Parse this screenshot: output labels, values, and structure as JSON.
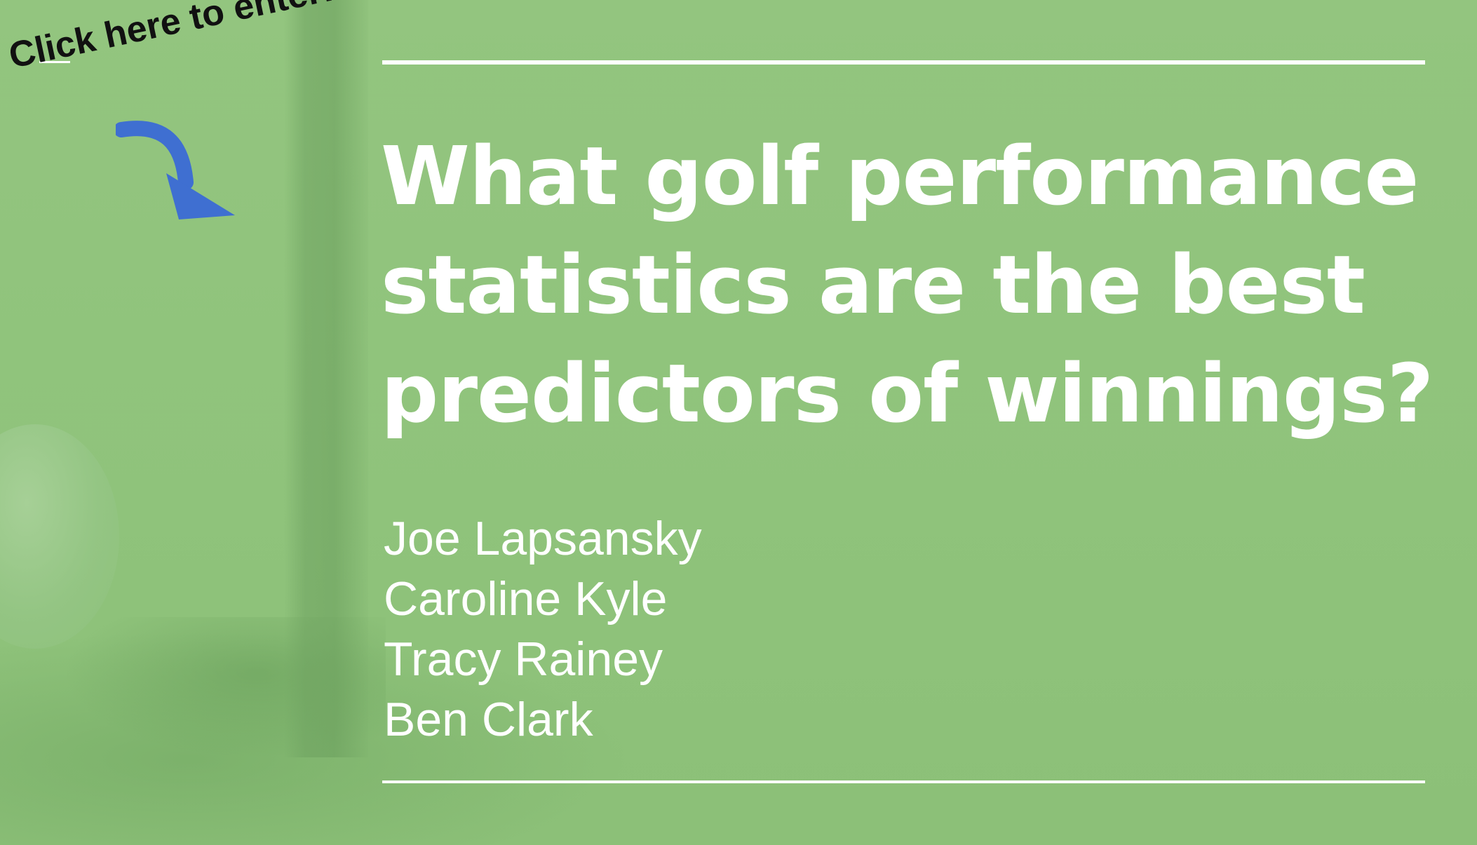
{
  "slide": {
    "background_color": "#90c37d",
    "accent_arrow_color": "#3f6fd1"
  },
  "callout": {
    "text": "Click here to enter!",
    "arrow_icon": "curved-arrow-down-right-icon"
  },
  "title": {
    "lines": [
      "What golf performance",
      "statistics are the best",
      "predictors of winnings?"
    ]
  },
  "authors": [
    "Joe Lapsansky",
    "Caroline Kyle",
    "Tracy Rainey",
    "Ben Clark"
  ]
}
